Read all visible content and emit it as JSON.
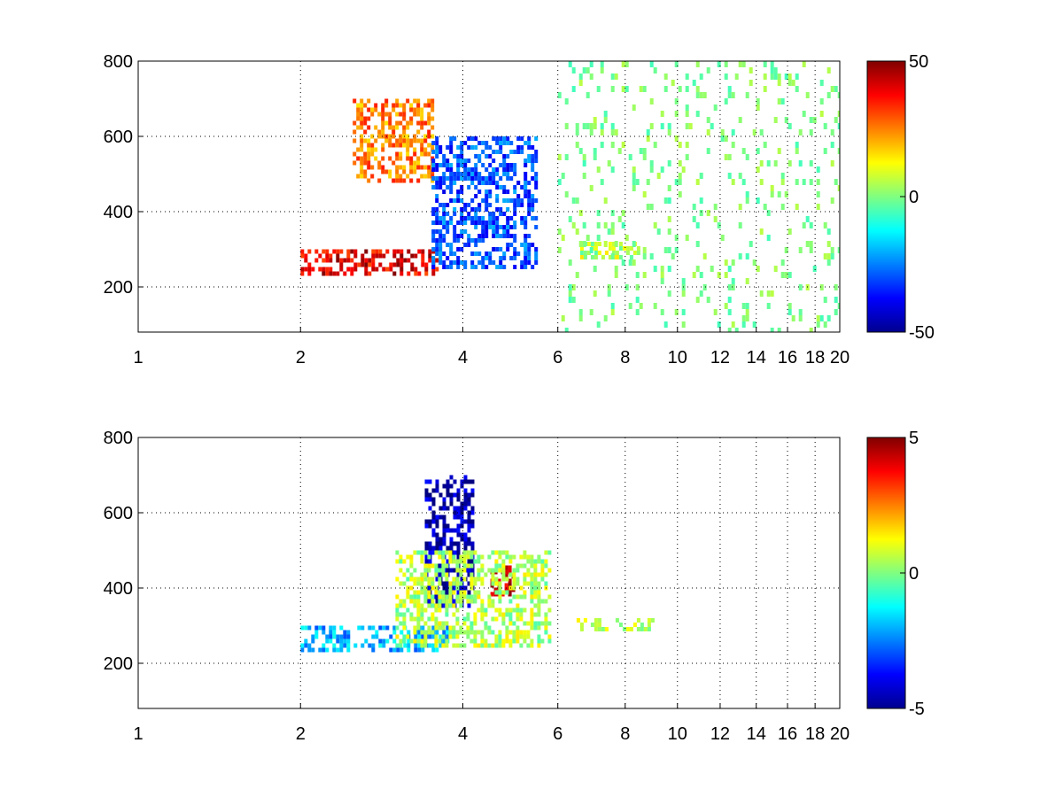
{
  "chart_data": [
    {
      "type": "heatmap",
      "title": "",
      "xlabel": "",
      "ylabel": "",
      "x_scale": "log",
      "xlim": [
        1,
        20
      ],
      "ylim": [
        80,
        800
      ],
      "xticks": [
        1,
        2,
        4,
        6,
        8,
        10,
        12,
        14,
        16,
        18,
        20
      ],
      "xtick_labels": [
        "1",
        "2",
        "4",
        "6",
        "8",
        "10",
        "12",
        "14",
        "16",
        "18",
        "20"
      ],
      "yticks": [
        200,
        400,
        600,
        800
      ],
      "ytick_labels": [
        "200",
        "400",
        "600",
        "800"
      ],
      "grid": true,
      "colormap": "jet",
      "clim": [
        -50,
        50
      ],
      "colorbar_ticks": [
        -50,
        0,
        50
      ],
      "colorbar_labels": [
        "-50",
        "0",
        "50"
      ],
      "features": [
        {
          "x_range": [
            2.0,
            3.6
          ],
          "y_range": [
            240,
            300
          ],
          "value": 40
        },
        {
          "x_range": [
            2.5,
            3.5
          ],
          "y_range": [
            480,
            700
          ],
          "value": 25
        },
        {
          "x_range": [
            3.5,
            5.5
          ],
          "y_range": [
            250,
            600
          ],
          "value": -30
        },
        {
          "x_range": [
            6.5,
            8.5
          ],
          "y_range": [
            280,
            320
          ],
          "value": 5
        },
        {
          "x_range": [
            6.0,
            20.0
          ],
          "y_range": [
            80,
            800
          ],
          "value": 0,
          "note": "sparse scatter"
        }
      ]
    },
    {
      "type": "heatmap",
      "title": "",
      "xlabel": "",
      "ylabel": "",
      "x_scale": "log",
      "xlim": [
        1,
        20
      ],
      "ylim": [
        80,
        800
      ],
      "xticks": [
        1,
        2,
        4,
        6,
        8,
        10,
        12,
        14,
        16,
        18,
        20
      ],
      "xtick_labels": [
        "1",
        "2",
        "4",
        "6",
        "8",
        "10",
        "12",
        "14",
        "16",
        "18",
        "20"
      ],
      "yticks": [
        200,
        400,
        600,
        800
      ],
      "ytick_labels": [
        "200",
        "400",
        "600",
        "800"
      ],
      "grid": true,
      "colormap": "jet",
      "clim": [
        -5,
        5
      ],
      "colorbar_ticks": [
        -5,
        0,
        5
      ],
      "colorbar_labels": [
        "-5",
        "0",
        "5"
      ],
      "features": [
        {
          "x_range": [
            2.0,
            3.8
          ],
          "y_range": [
            240,
            300
          ],
          "value": -2
        },
        {
          "x_range": [
            3.4,
            4.2
          ],
          "y_range": [
            350,
            700
          ],
          "value": -4.5
        },
        {
          "x_range": [
            4.5,
            5.0
          ],
          "y_range": [
            380,
            460
          ],
          "value": 4.5
        },
        {
          "x_range": [
            3.0,
            5.8
          ],
          "y_range": [
            250,
            500
          ],
          "value": 0.5
        },
        {
          "x_range": [
            6.5,
            9.0
          ],
          "y_range": [
            290,
            320
          ],
          "value": 0.5
        }
      ]
    }
  ]
}
